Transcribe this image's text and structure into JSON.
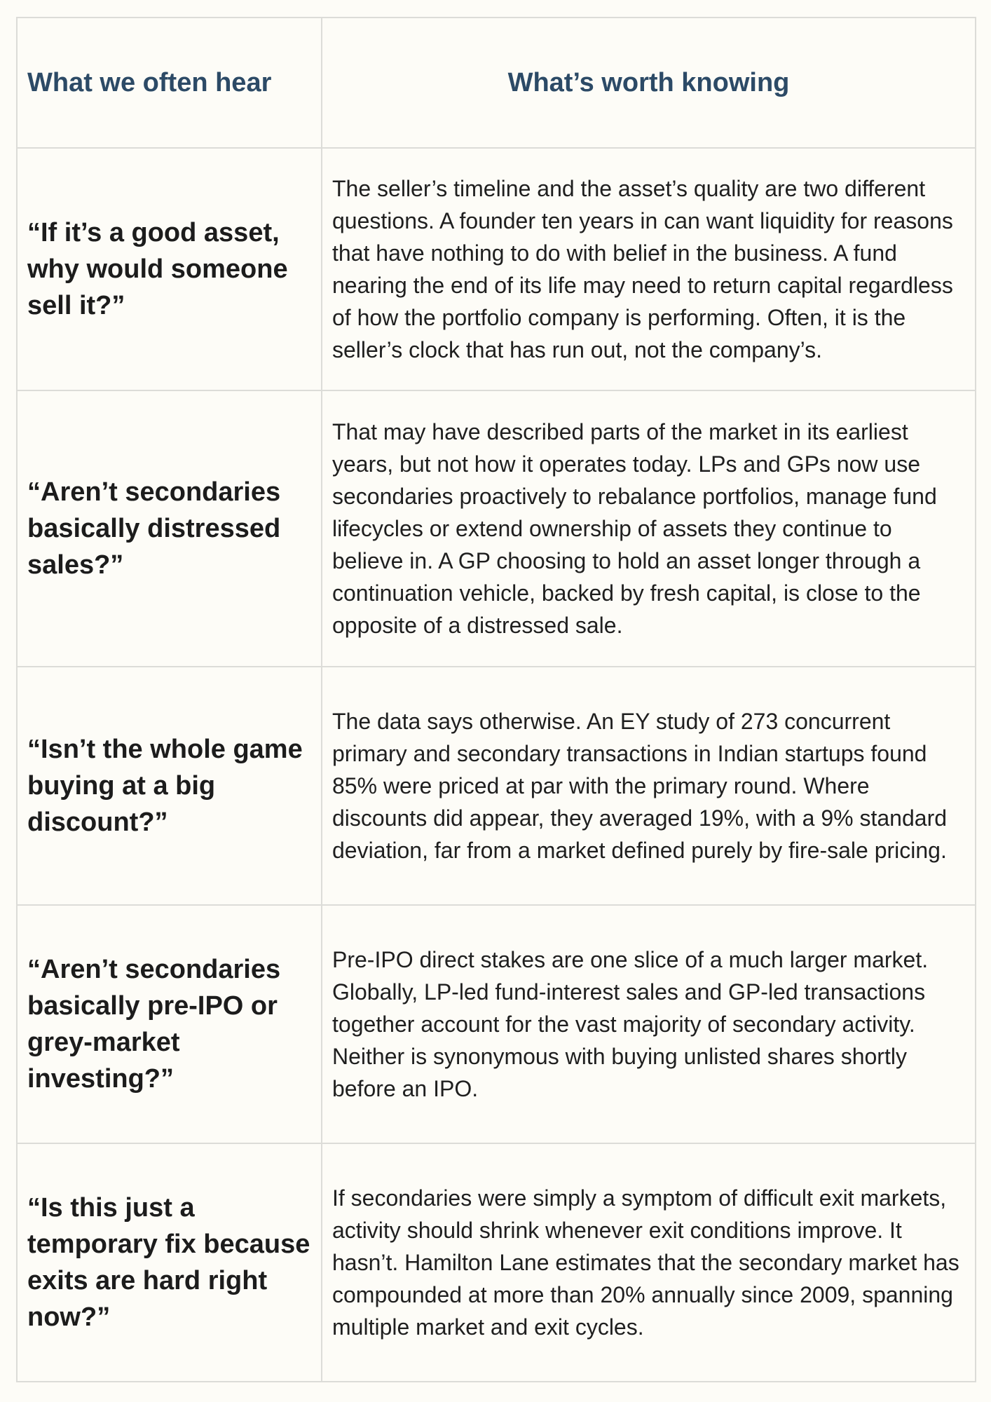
{
  "table": {
    "headers": {
      "left": "What we often hear",
      "right": "What’s worth knowing"
    },
    "rows": [
      {
        "question": "“If it’s a good asset, why would someone sell it?”",
        "answer": "The seller’s timeline and the asset’s quality are two different questions. A founder ten years in can want liquidity for reasons that have nothing to do with belief in the business. A fund nearing the end of its life may need to return capital regardless of how the portfolio company is performing. Often, it is the seller’s clock that has run out, not the company’s."
      },
      {
        "question": "“Aren’t secondaries basically distressed sales?”",
        "answer": "That may have described parts of the market in its earliest years, but not how it operates today. LPs and GPs now use secondaries proactively to rebalance portfolios, manage fund lifecycles or extend ownership of assets they continue to believe in. A GP choosing to hold an asset longer through a continuation vehicle, backed by fresh capital, is close to the opposite of a distressed sale."
      },
      {
        "question": "“Isn’t the whole game buying at a big discount?”",
        "answer": "The data says otherwise. An EY study of 273 concurrent primary and secondary transactions in Indian startups found 85% were priced at par with the primary round. Where discounts did appear, they averaged 19%, with a 9% standard deviation, far from a market defined purely by fire-sale pricing."
      },
      {
        "question": "“Aren’t secondaries basically pre-IPO or grey-market investing?”",
        "answer": "Pre-IPO direct stakes are one slice of a much larger market. Globally, LP-led fund-interest sales and GP-led transactions together account for the vast majority of secondary activity. Neither is synonymous with buying unlisted shares shortly before an IPO."
      },
      {
        "question": "“Is this just a temporary fix because exits are hard right now?”",
        "answer": "If secondaries were simply a symptom of difficult exit markets, activity should shrink whenever exit conditions improve. It hasn’t. Hamilton Lane estimates that the secondary market has compounded at more than 20% annually since 2009, spanning multiple market and exit cycles."
      }
    ]
  }
}
